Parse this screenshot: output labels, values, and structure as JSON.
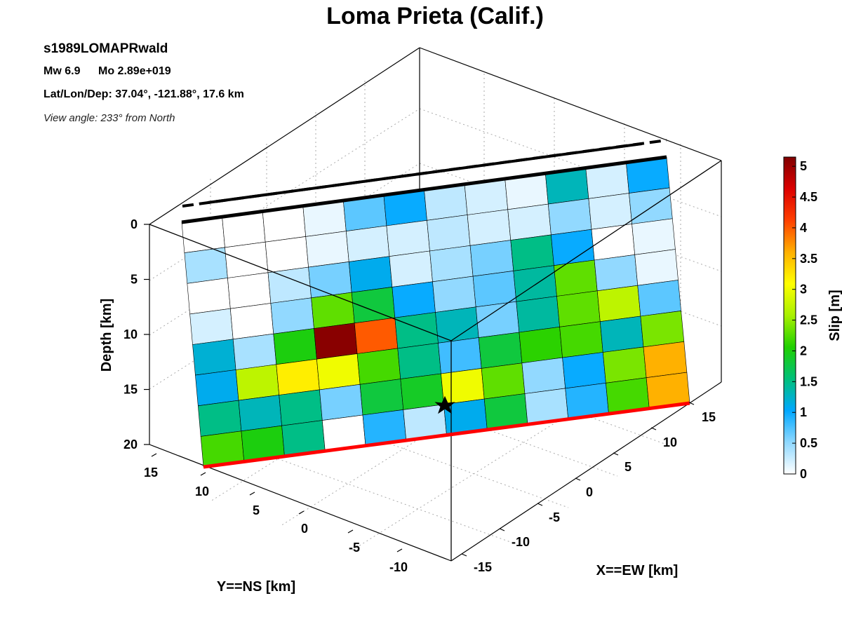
{
  "chart_data": {
    "type": "heatmap",
    "title": "Loma Prieta (Calif.)",
    "event_id": "s1989LOMAPRwald",
    "magnitude_label": "Mw 6.9",
    "moment_label": "Mo 2.89e+019",
    "location_label": "Lat/Lon/Dep: 37.04°, -121.88°, 17.6 km",
    "view_angle_label": "View angle: 233° from North",
    "axes": {
      "depth": {
        "label": "Depth [km]",
        "ticks": [
          "0",
          "5",
          "10",
          "15",
          "20"
        ],
        "range": [
          0,
          20
        ]
      },
      "y": {
        "label": "Y==NS [km]",
        "ticks": [
          "15",
          "10",
          "5",
          "0",
          "-5",
          "-10"
        ],
        "range": [
          -13,
          17
        ]
      },
      "x": {
        "label": "X==EW [km]",
        "ticks": [
          "-15",
          "-10",
          "-5",
          "0",
          "5",
          "10",
          "15"
        ],
        "range": [
          -17,
          18
        ]
      }
    },
    "colorbar": {
      "label": "Slip [m]",
      "min": 0,
      "max": 5.15,
      "ticks": [
        "0",
        "0.5",
        "1",
        "1.5",
        "2",
        "2.5",
        "3",
        "3.5",
        "4",
        "4.5",
        "5"
      ],
      "colors": [
        "#ffffff",
        "#8fd8ff",
        "#00a8ff",
        "#00c07a",
        "#20d000",
        "#a8f000",
        "#ffff00",
        "#ffb000",
        "#ff4000",
        "#dc0000",
        "#800000"
      ]
    },
    "grid_rows": 8,
    "grid_cols": 12,
    "slip": [
      [
        0.0,
        0.0,
        0.0,
        0.1,
        0.7,
        1.0,
        0.3,
        0.2,
        0.1,
        1.3,
        0.2,
        1.0
      ],
      [
        0.4,
        0.0,
        0.0,
        0.1,
        0.2,
        0.2,
        0.3,
        0.2,
        0.2,
        0.5,
        0.2,
        0.5
      ],
      [
        0.0,
        0.0,
        0.3,
        0.6,
        1.1,
        0.2,
        0.4,
        0.6,
        1.5,
        1.0,
        0.0,
        0.1
      ],
      [
        0.2,
        0.0,
        0.5,
        2.3,
        1.8,
        1.0,
        0.5,
        0.7,
        1.4,
        2.3,
        0.5,
        0.1
      ],
      [
        1.2,
        0.4,
        2.0,
        5.1,
        4.0,
        1.5,
        1.3,
        0.6,
        1.4,
        2.3,
        2.7,
        0.7
      ],
      [
        1.1,
        2.7,
        3.2,
        3.0,
        2.2,
        1.5,
        0.8,
        1.8,
        2.1,
        2.2,
        1.3,
        2.4
      ],
      [
        1.5,
        1.3,
        1.5,
        0.6,
        1.8,
        1.9,
        3.0,
        2.3,
        0.5,
        1.0,
        2.4,
        3.6
      ],
      [
        2.2,
        2.0,
        1.5,
        0.0,
        0.9,
        0.3,
        1.1,
        1.8,
        0.4,
        0.9,
        2.2,
        3.6
      ]
    ],
    "rupture_bottom_color": "#ff0000",
    "hypocenter": {
      "x": -3.5,
      "y": -2.5,
      "depth": 17.6
    },
    "grid": true
  }
}
